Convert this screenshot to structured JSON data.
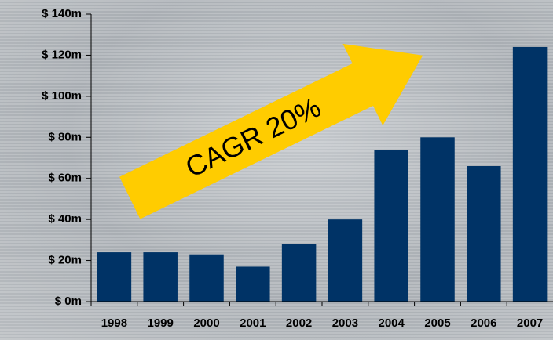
{
  "chart_data": {
    "type": "bar",
    "annotation": "CAGR 20%",
    "categories": [
      "1998",
      "1999",
      "2000",
      "2001",
      "2002",
      "2003",
      "2004",
      "2005",
      "2006",
      "2007"
    ],
    "values": [
      24,
      24,
      23,
      17,
      28,
      40,
      74,
      80,
      66,
      124
    ],
    "color": "#003366",
    "ylim": [
      0,
      140
    ],
    "yticks": [
      {
        "value": 0,
        "label": "$ 0m"
      },
      {
        "value": 20,
        "label": "$ 20m"
      },
      {
        "value": 40,
        "label": "$ 40m"
      },
      {
        "value": 60,
        "label": "$ 60m"
      },
      {
        "value": 80,
        "label": "$ 80m"
      },
      {
        "value": 100,
        "label": "$ 100m"
      },
      {
        "value": 120,
        "label": "$ 120m"
      },
      {
        "value": 140,
        "label": "$ 140m"
      }
    ],
    "grid": false
  }
}
